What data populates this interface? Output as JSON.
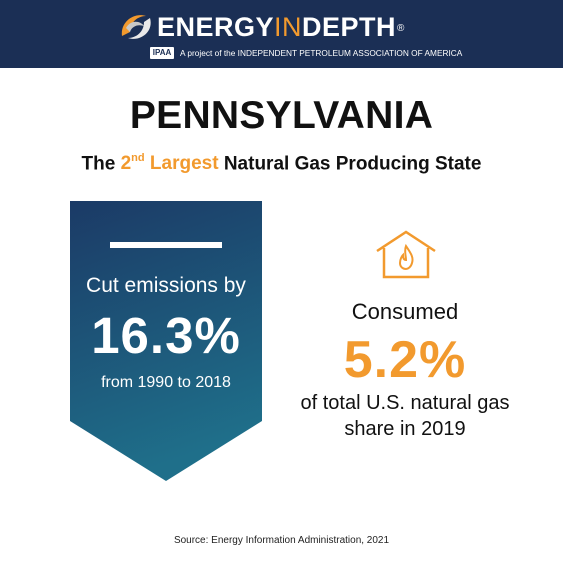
{
  "header": {
    "brand_part1": "ENERGY",
    "brand_part2": "IN",
    "brand_part3": "DEPTH",
    "registered_mark": "®",
    "badge_text": "IPAA",
    "tagline": "A project of the INDEPENDENT PETROLEUM ASSOCIATION OF AMERICA"
  },
  "title": "PENNSYLVANIA",
  "subtitle": {
    "prefix": "The ",
    "rank_number": "2",
    "rank_suffix": "nd",
    "highlight": " Largest",
    "rest": " Natural Gas Producing State"
  },
  "emissions": {
    "label": "Cut emissions by",
    "value": "16.3%",
    "period": "from 1990 to 2018"
  },
  "consumption": {
    "label": "Consumed",
    "value": "5.2%",
    "line1": "of total U.S. natural gas",
    "line2": "share in 2019"
  },
  "source": "Source: Energy Information Administration, 2021",
  "colors": {
    "header_bg": "#1b2f55",
    "accent_orange": "#f29a2e",
    "banner_top": "#1b3a66",
    "banner_bottom": "#1f6f8a"
  },
  "icons": {
    "logo": "swirl-logo-icon",
    "house": "house-flame-icon"
  }
}
